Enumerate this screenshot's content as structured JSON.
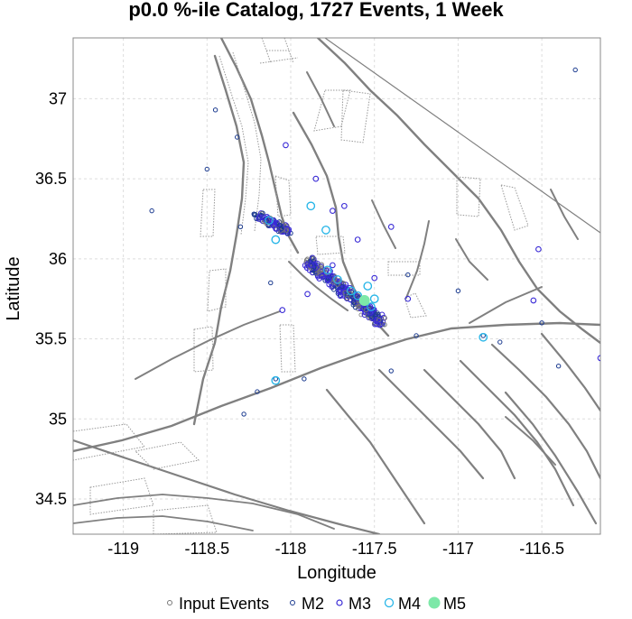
{
  "chart_data": {
    "type": "scatter",
    "title": "p0.0 %-ile Catalog, 1727 Events, 1 Week",
    "xlabel": "Longitude",
    "ylabel": "Latitude",
    "xlim": [
      -119.3,
      -116.15
    ],
    "ylim": [
      34.28,
      37.38
    ],
    "xticks": [
      -119,
      -118.5,
      -118,
      -117.5,
      -117,
      -116.5
    ],
    "xtick_labels": [
      "-119",
      "-118.5",
      "-118",
      "-117.5",
      "-117",
      "-116.5"
    ],
    "yticks": [
      34.5,
      35,
      35.5,
      36,
      36.5,
      37
    ],
    "ytick_labels": [
      "34.5",
      "35",
      "35.5",
      "36",
      "36.5",
      "37"
    ],
    "grid": true,
    "legend_position": "bottom",
    "colors": {
      "input_events": "#777777",
      "m2": "#1a3a8f",
      "m3": "#3a2bd6",
      "m4": "#29b6e8",
      "m5": "#7de8a8",
      "faults": "#808080",
      "grid": "#dddddd"
    },
    "total_events": 1727,
    "series": [
      {
        "name": "Input Events",
        "points": [
          [
            -118.2,
            36.27
          ],
          [
            -118.15,
            36.25
          ],
          [
            -118.1,
            36.23
          ],
          [
            -118.06,
            36.2
          ],
          [
            -118.03,
            36.18
          ],
          [
            -117.85,
            35.98
          ],
          [
            -117.82,
            35.95
          ],
          [
            -117.78,
            35.9
          ],
          [
            -117.73,
            35.86
          ],
          [
            -117.7,
            35.83
          ],
          [
            -117.66,
            35.8
          ],
          [
            -117.63,
            35.76
          ],
          [
            -117.6,
            35.73
          ],
          [
            -117.57,
            35.7
          ],
          [
            -117.54,
            35.67
          ],
          [
            -117.5,
            35.63
          ],
          [
            -117.47,
            35.6
          ],
          [
            -117.9,
            36.0
          ],
          [
            -117.75,
            35.82
          ],
          [
            -117.58,
            35.65
          ]
        ]
      },
      {
        "name": "M2",
        "points": [
          [
            -118.22,
            36.28
          ],
          [
            -118.18,
            36.27
          ],
          [
            -118.12,
            36.24
          ],
          [
            -118.08,
            36.22
          ],
          [
            -118.04,
            36.19
          ],
          [
            -118.0,
            36.16
          ],
          [
            -117.88,
            35.99
          ],
          [
            -117.84,
            35.96
          ],
          [
            -117.8,
            35.93
          ],
          [
            -117.76,
            35.89
          ],
          [
            -117.72,
            35.85
          ],
          [
            -117.69,
            35.82
          ],
          [
            -117.65,
            35.79
          ],
          [
            -117.62,
            35.75
          ],
          [
            -117.59,
            35.72
          ],
          [
            -117.56,
            35.69
          ],
          [
            -117.52,
            35.66
          ],
          [
            -117.49,
            35.62
          ],
          [
            -117.45,
            35.59
          ],
          [
            -118.3,
            36.2
          ],
          [
            -117.3,
            35.9
          ],
          [
            -117.0,
            35.8
          ],
          [
            -116.85,
            35.52
          ],
          [
            -116.5,
            35.6
          ],
          [
            -116.3,
            37.18
          ],
          [
            -118.83,
            36.3
          ],
          [
            -118.45,
            36.93
          ],
          [
            -118.32,
            36.76
          ],
          [
            -118.5,
            36.56
          ],
          [
            -118.12,
            35.85
          ],
          [
            -118.09,
            35.25
          ],
          [
            -118.2,
            35.17
          ],
          [
            -118.28,
            35.03
          ],
          [
            -117.92,
            35.25
          ],
          [
            -117.4,
            35.3
          ],
          [
            -116.75,
            35.48
          ],
          [
            -116.4,
            35.33
          ],
          [
            -117.25,
            35.52
          ]
        ]
      },
      {
        "name": "M3",
        "points": [
          [
            -118.16,
            36.26
          ],
          [
            -118.1,
            36.21
          ],
          [
            -118.05,
            36.17
          ],
          [
            -117.9,
            35.97
          ],
          [
            -117.86,
            35.94
          ],
          [
            -117.82,
            35.9
          ],
          [
            -117.78,
            35.87
          ],
          [
            -117.74,
            35.84
          ],
          [
            -117.7,
            35.8
          ],
          [
            -117.66,
            35.77
          ],
          [
            -117.62,
            35.74
          ],
          [
            -117.58,
            35.71
          ],
          [
            -117.55,
            35.68
          ],
          [
            -117.51,
            35.65
          ],
          [
            -117.48,
            35.61
          ],
          [
            -118.03,
            36.71
          ],
          [
            -117.68,
            36.33
          ],
          [
            -117.75,
            35.96
          ],
          [
            -117.5,
            35.88
          ],
          [
            -117.3,
            35.75
          ],
          [
            -116.55,
            35.74
          ],
          [
            -116.52,
            36.06
          ],
          [
            -116.15,
            35.38
          ],
          [
            -117.9,
            35.78
          ],
          [
            -118.05,
            35.68
          ],
          [
            -117.85,
            36.5
          ],
          [
            -117.6,
            36.12
          ],
          [
            -117.4,
            36.2
          ],
          [
            -117.75,
            36.3
          ]
        ]
      },
      {
        "name": "M4",
        "points": [
          [
            -118.13,
            36.24
          ],
          [
            -118.09,
            36.12
          ],
          [
            -117.88,
            36.33
          ],
          [
            -117.78,
            35.93
          ],
          [
            -117.72,
            35.87
          ],
          [
            -117.64,
            35.8
          ],
          [
            -117.6,
            35.77
          ],
          [
            -117.52,
            35.7
          ],
          [
            -117.5,
            35.75
          ],
          [
            -118.09,
            35.24
          ],
          [
            -116.85,
            35.51
          ],
          [
            -117.79,
            36.18
          ],
          [
            -117.54,
            35.83
          ]
        ]
      },
      {
        "name": "M5",
        "points": [
          [
            -117.56,
            35.74
          ]
        ]
      }
    ]
  }
}
